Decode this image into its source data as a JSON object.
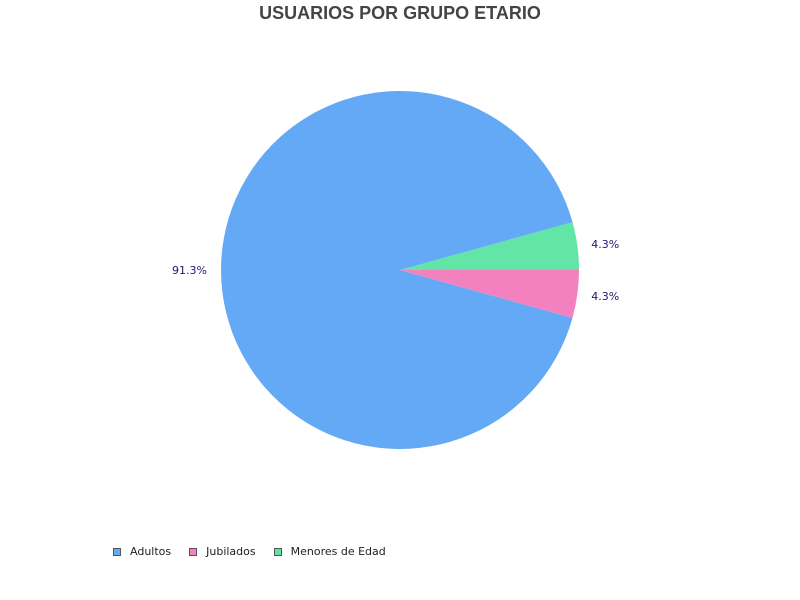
{
  "chart_data": {
    "type": "pie",
    "title": "USUARIOS POR GRUPO ETARIO",
    "legend_position": "bottom-left",
    "slices": [
      {
        "name": "Adultos",
        "value": 91.3,
        "label": "91.3%",
        "color": "#63a9f5"
      },
      {
        "name": "Jubilados",
        "value": 4.3,
        "label": "4.3%",
        "color": "#f381bf"
      },
      {
        "name": "Menores de Edad",
        "value": 4.3,
        "label": "4.3%",
        "color": "#62e5a6"
      }
    ]
  }
}
